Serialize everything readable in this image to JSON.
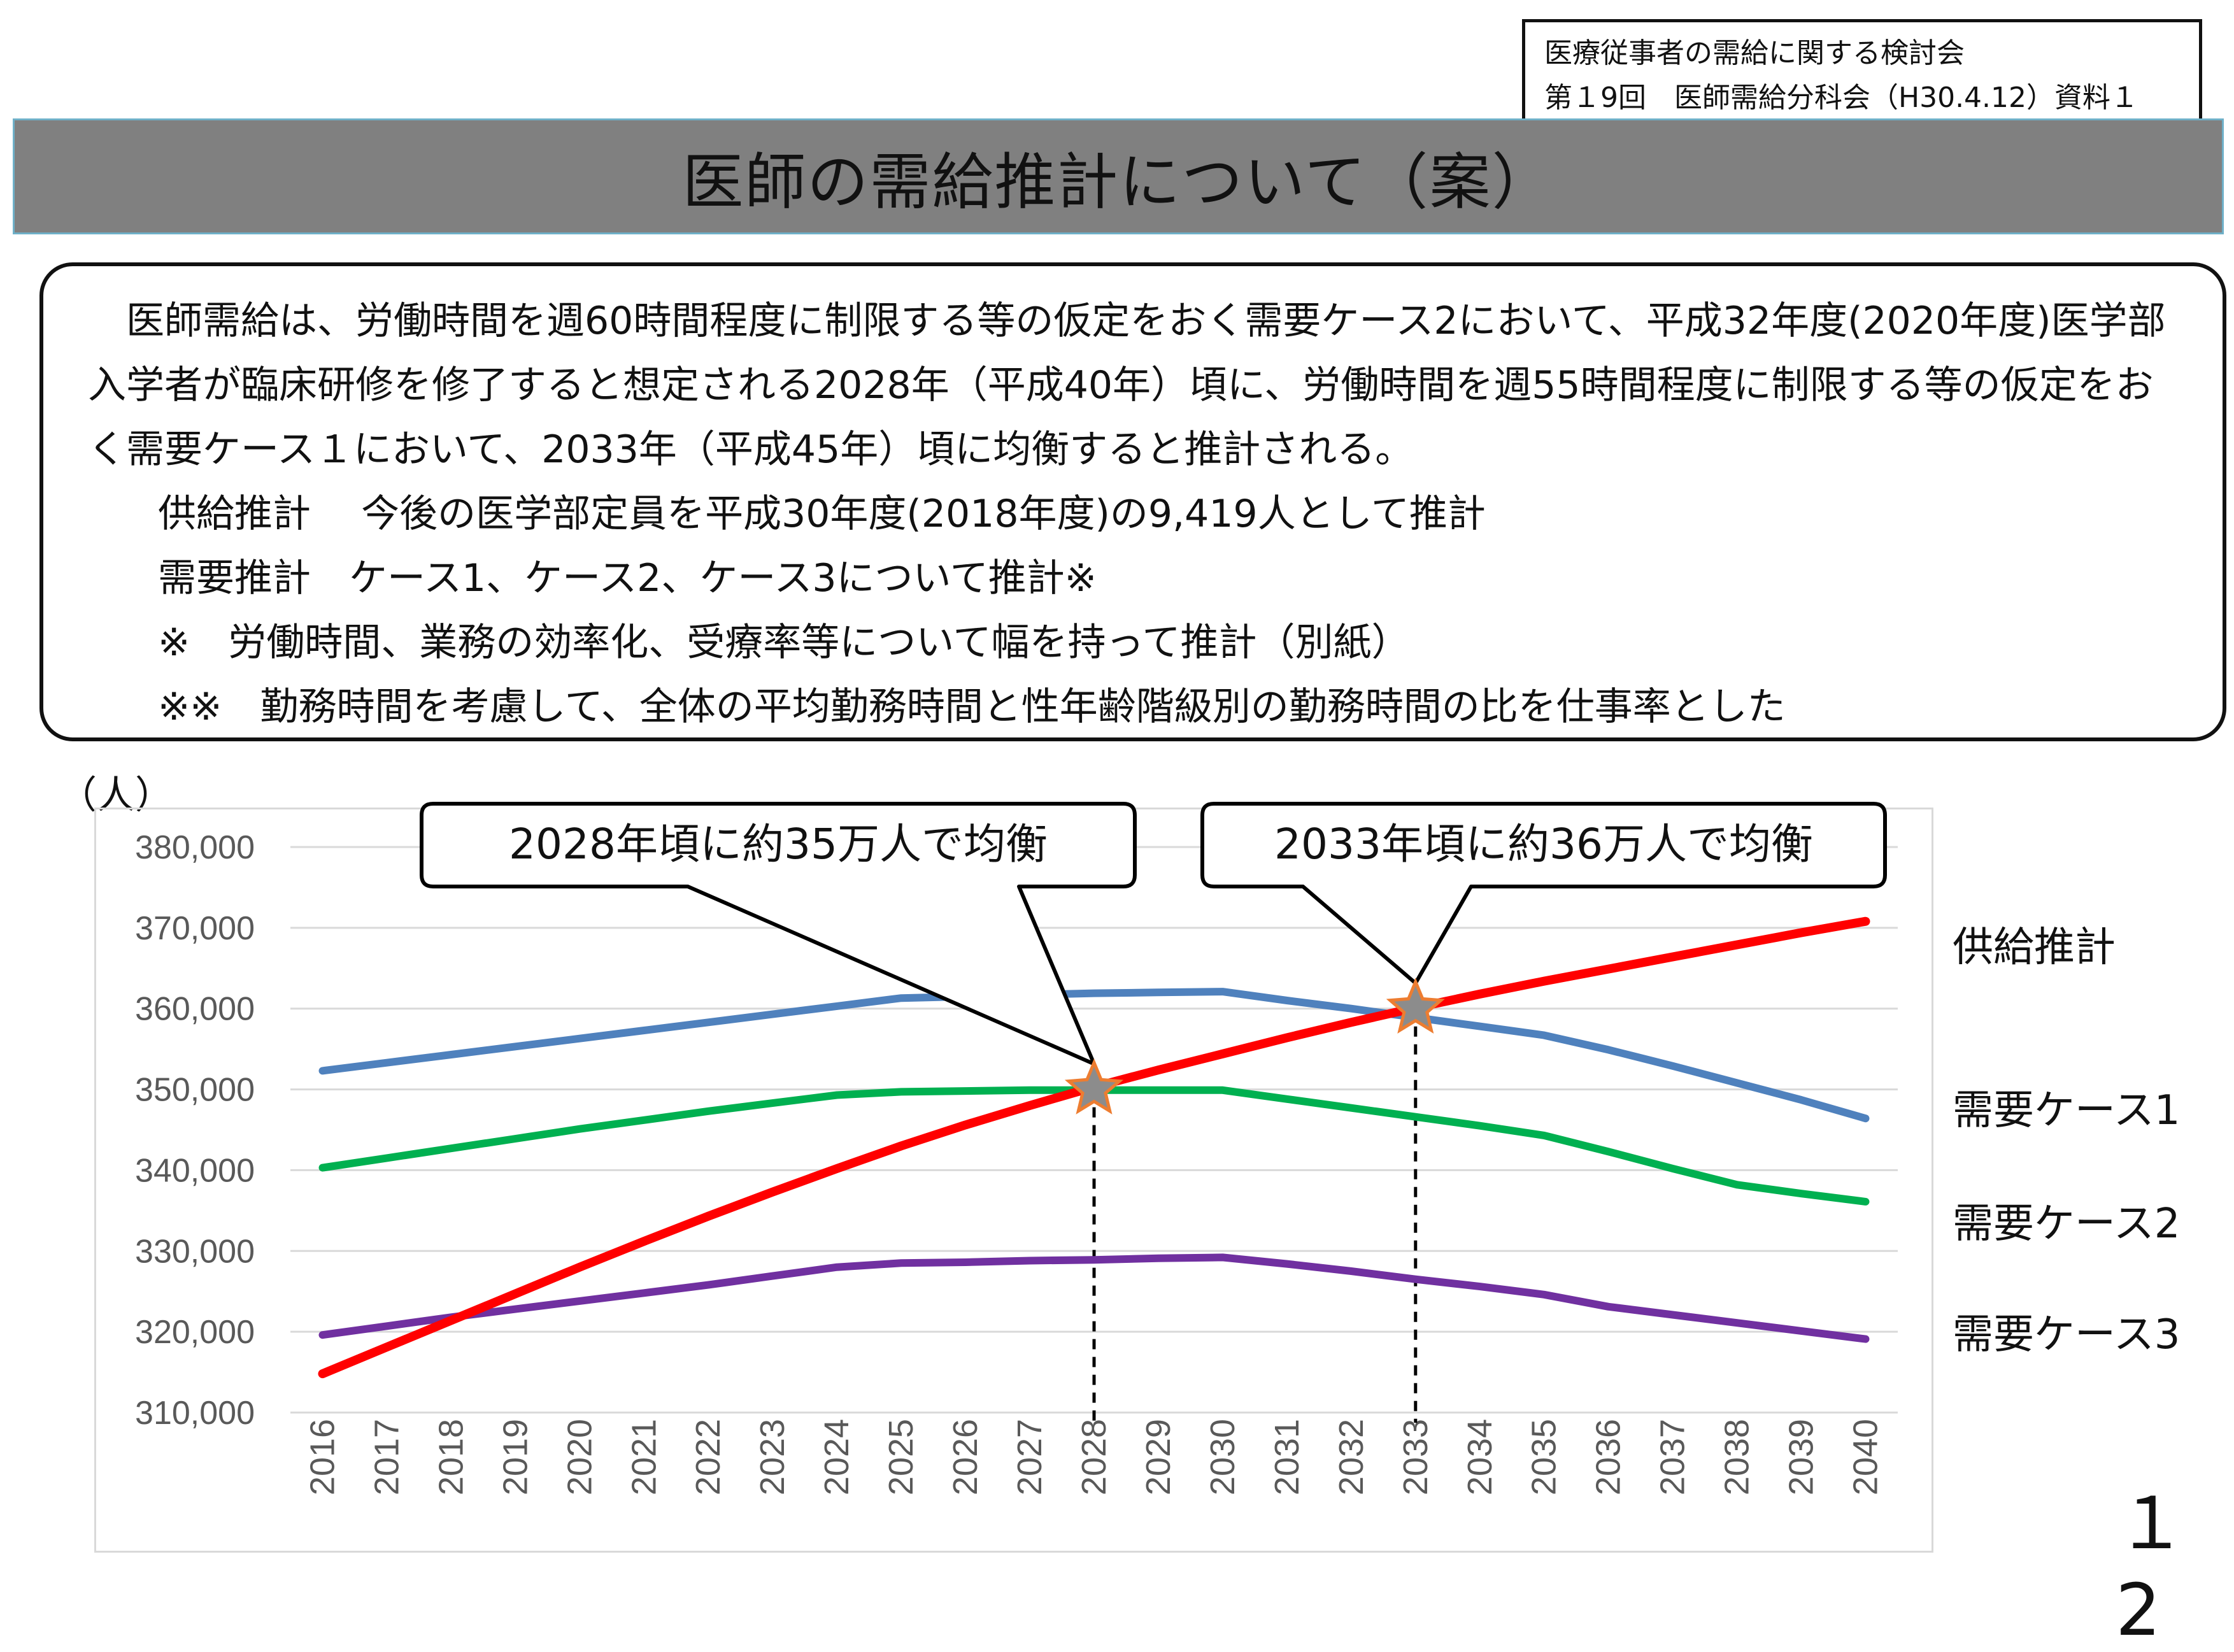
{
  "source": {
    "line1": "医療従事者の需給に関する検討会",
    "line2": "第１9回　医師需給分科会（H30.4.12）資料１"
  },
  "title": "医師の需給推計について（案）",
  "summary": {
    "paragraph": "医師需給は、労働時間を週60時間程度に制限する等の仮定をおく需要ケース2において、平成32年度(2020年度)医学部入学者が臨床研修を修了すると想定される2028年（平成40年）頃に、労働時間を週55時間程度に制限する等の仮定をおく需要ケース１において、2033年（平成45年）頃に均衡すると推計される。",
    "supply": "供給推計　 今後の医学部定員を平成30年度(2018年度)の9,419人として推計",
    "demand": "需要推計　ケース1、ケース2、ケース3について推計※",
    "note1": "※　労働時間、業務の効率化、受療率等について幅を持って推計（別紙）",
    "note2": "※※　勤務時間を考慮して、全体の平均勤務時間と性年齢階級別の勤務時間の比を仕事率とした"
  },
  "page_number": "１2",
  "chart_data": {
    "type": "line",
    "ylabel": "（人）",
    "ylim": [
      310000,
      380000
    ],
    "yticks": [
      310000,
      320000,
      330000,
      340000,
      350000,
      360000,
      370000,
      380000
    ],
    "ytick_labels": [
      "310,000",
      "320,000",
      "330,000",
      "340,000",
      "350,000",
      "360,000",
      "370,000",
      "380,000"
    ],
    "x": [
      "2016",
      "2017",
      "2018",
      "2019",
      "2020",
      "2021",
      "2022",
      "2023",
      "2024",
      "2025",
      "2026",
      "2027",
      "2028",
      "2029",
      "2030",
      "2031",
      "2032",
      "2033",
      "2034",
      "2035",
      "2036",
      "2037",
      "2038",
      "2039",
      "2040"
    ],
    "grid": true,
    "series": [
      {
        "name": "供給推計",
        "color": "#ff0000",
        "values": [
          314800,
          318100,
          321400,
          324700,
          328000,
          331200,
          334300,
          337300,
          340200,
          343000,
          345600,
          348000,
          350300,
          352400,
          354400,
          356400,
          358300,
          360100,
          361800,
          363400,
          364900,
          366400,
          367900,
          369400,
          370800
        ]
      },
      {
        "name": "需要ケース1",
        "color": "#4f81bd",
        "values": [
          352300,
          353300,
          354300,
          355300,
          356300,
          357300,
          358300,
          359300,
          360300,
          361300,
          361500,
          361700,
          361900,
          362000,
          362100,
          361000,
          360000,
          358900,
          357800,
          356700,
          354900,
          352900,
          350800,
          348700,
          346400
        ]
      },
      {
        "name": "需要ケース2",
        "color": "#00b050",
        "values": [
          340300,
          341500,
          342700,
          343900,
          345100,
          346200,
          347300,
          348300,
          349300,
          349700,
          349800,
          349900,
          349900,
          349900,
          349900,
          348800,
          347700,
          346600,
          345500,
          344300,
          342300,
          340200,
          338200,
          337100,
          336100
        ]
      },
      {
        "name": "需要ケース3",
        "color": "#7030a0",
        "values": [
          319600,
          320700,
          321800,
          322800,
          323800,
          324800,
          325800,
          326900,
          328000,
          328500,
          328600,
          328800,
          328900,
          329100,
          329200,
          328400,
          327500,
          326500,
          325600,
          324600,
          323100,
          322100,
          321100,
          320100,
          319100
        ]
      }
    ],
    "annotations": [
      {
        "text": "2028年頃に約35万人で均衡",
        "x": "2028",
        "y": 350000
      },
      {
        "text": "2033年頃に約36万人で均衡",
        "x": "2033",
        "y": 360000
      }
    ]
  }
}
